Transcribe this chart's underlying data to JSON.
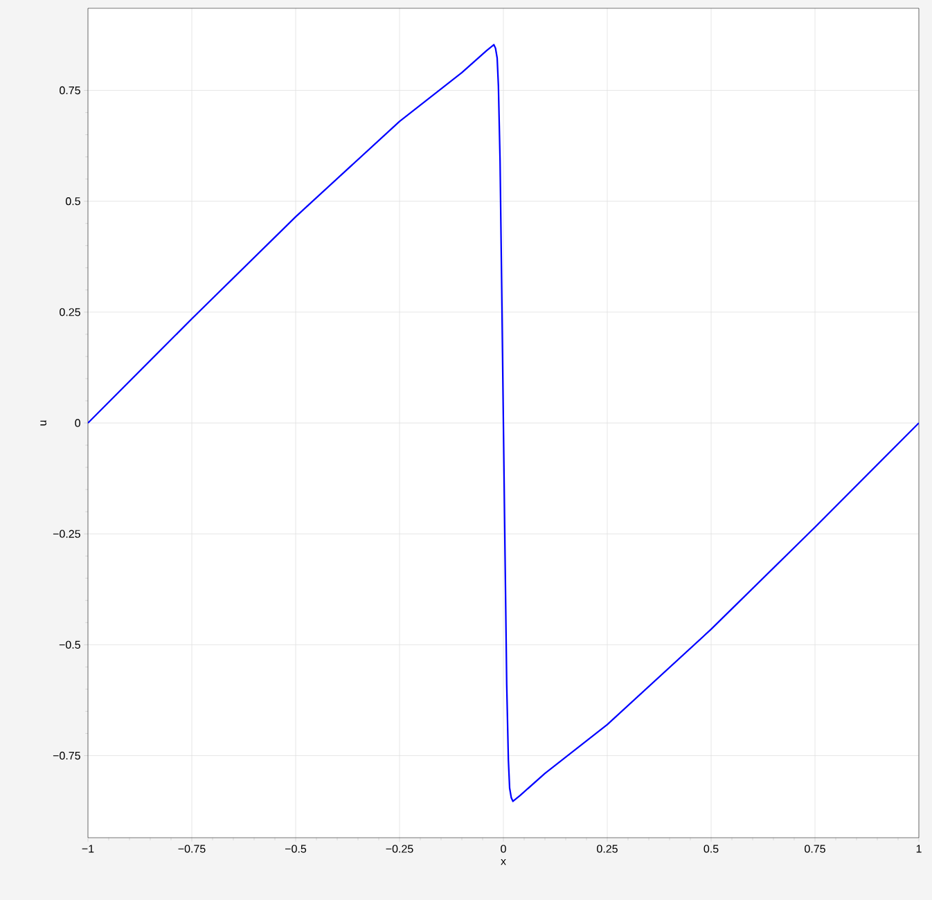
{
  "chart_data": {
    "type": "line",
    "xlabel": "x",
    "ylabel": "u",
    "x": [
      -1,
      -0.75,
      -0.5,
      -0.25,
      -0.1,
      -0.04,
      -0.023,
      -0.019,
      -0.015,
      -0.012,
      -0.008,
      -0.004,
      0,
      0.004,
      0.008,
      0.012,
      0.015,
      0.019,
      0.023,
      0.04,
      0.1,
      0.25,
      0.5,
      0.75,
      1
    ],
    "series": [
      {
        "color": "#0000ff",
        "values": [
          0,
          0.235,
          0.465,
          0.68,
          0.79,
          0.84,
          0.853,
          0.845,
          0.823,
          0.76,
          0.59,
          0.3,
          0,
          -0.3,
          -0.59,
          -0.76,
          -0.823,
          -0.845,
          -0.853,
          -0.84,
          -0.79,
          -0.68,
          -0.465,
          -0.235,
          0
        ]
      }
    ],
    "xlim": [
      -1,
      1
    ],
    "ylim": [
      -0.935,
      0.935
    ],
    "xticks": [
      {
        "value": -1,
        "label": "−1"
      },
      {
        "value": -0.75,
        "label": "−0.75"
      },
      {
        "value": -0.5,
        "label": "−0.5"
      },
      {
        "value": -0.25,
        "label": "−0.25"
      },
      0,
      0.25,
      0.5,
      0.75,
      1
    ],
    "yticks": [
      {
        "value": -0.75,
        "label": "−0.75"
      },
      {
        "value": -0.5,
        "label": "−0.5"
      },
      {
        "value": -0.25,
        "label": "−0.25"
      },
      0,
      0.25,
      0.5,
      0.75
    ],
    "grid": true,
    "line_style": "solid",
    "marker": "none"
  }
}
